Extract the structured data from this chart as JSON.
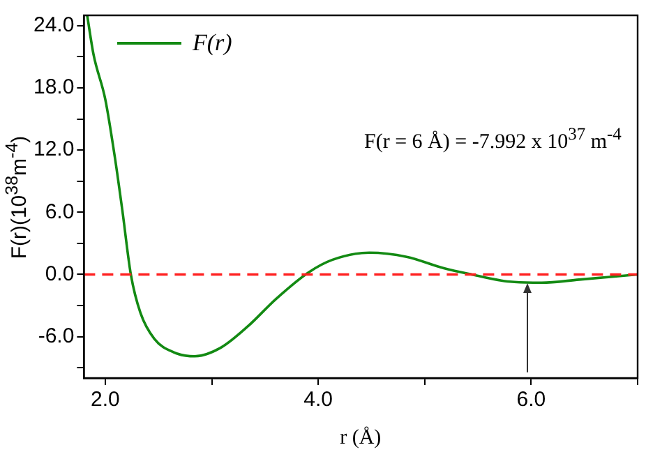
{
  "chart_data": {
    "type": "line",
    "xlabel": "r (Å)",
    "ylabel": "F(r)(10$^{38}$m$^{-4}$)",
    "x": [
      1.83,
      1.89,
      2.0,
      2.09,
      2.16,
      2.24,
      2.33,
      2.46,
      2.64,
      2.84,
      3.08,
      3.34,
      3.6,
      3.91,
      4.13,
      4.48,
      4.83,
      5.18,
      5.44,
      5.8,
      6.1,
      6.45,
      7.0
    ],
    "series": [
      {
        "name": "F(r)",
        "color": "#138a13",
        "values": [
          25.0,
          21.2,
          16.9,
          11.3,
          6.2,
          0.0,
          -3.7,
          -6.2,
          -7.5,
          -7.9,
          -7.1,
          -5.0,
          -2.4,
          0.2,
          1.4,
          2.1,
          1.7,
          0.6,
          0.0,
          -0.7,
          -0.8,
          -0.5,
          0.0
        ]
      }
    ],
    "xlim": [
      1.8,
      7.0
    ],
    "xticks": [
      {
        "value": 2,
        "label": "2.0"
      },
      {
        "value": 3,
        "label": null
      },
      {
        "value": 4,
        "label": "4.0"
      },
      {
        "value": 5,
        "label": null
      },
      {
        "value": 6,
        "label": "6.0"
      },
      {
        "value": 7,
        "label": null
      }
    ],
    "ylim": [
      -10,
      25
    ],
    "yticks": [
      {
        "value": -9,
        "label": null
      },
      {
        "value": -6,
        "label": "-6.0"
      },
      {
        "value": -3,
        "label": null
      },
      {
        "value": 0,
        "label": "0.0"
      },
      {
        "value": 3,
        "label": null
      },
      {
        "value": 6,
        "label": "6.0"
      },
      {
        "value": 9,
        "label": null
      },
      {
        "value": 12,
        "label": "12.0"
      },
      {
        "value": 15,
        "label": null
      },
      {
        "value": 18,
        "label": "18.0"
      },
      {
        "value": 21,
        "label": null
      },
      {
        "value": 24,
        "label": "24.0"
      }
    ],
    "ref_lines": [
      {
        "axis": "y",
        "value": 0,
        "color": "#ff2020",
        "line_style": "dashed"
      }
    ],
    "annotations": [
      "F(r = 6 Å) = -7.992 x 10$^{37}$ m$^{-4}$"
    ],
    "legend": "top left",
    "grid": false,
    "marker": "none",
    "line_style": "solid"
  }
}
